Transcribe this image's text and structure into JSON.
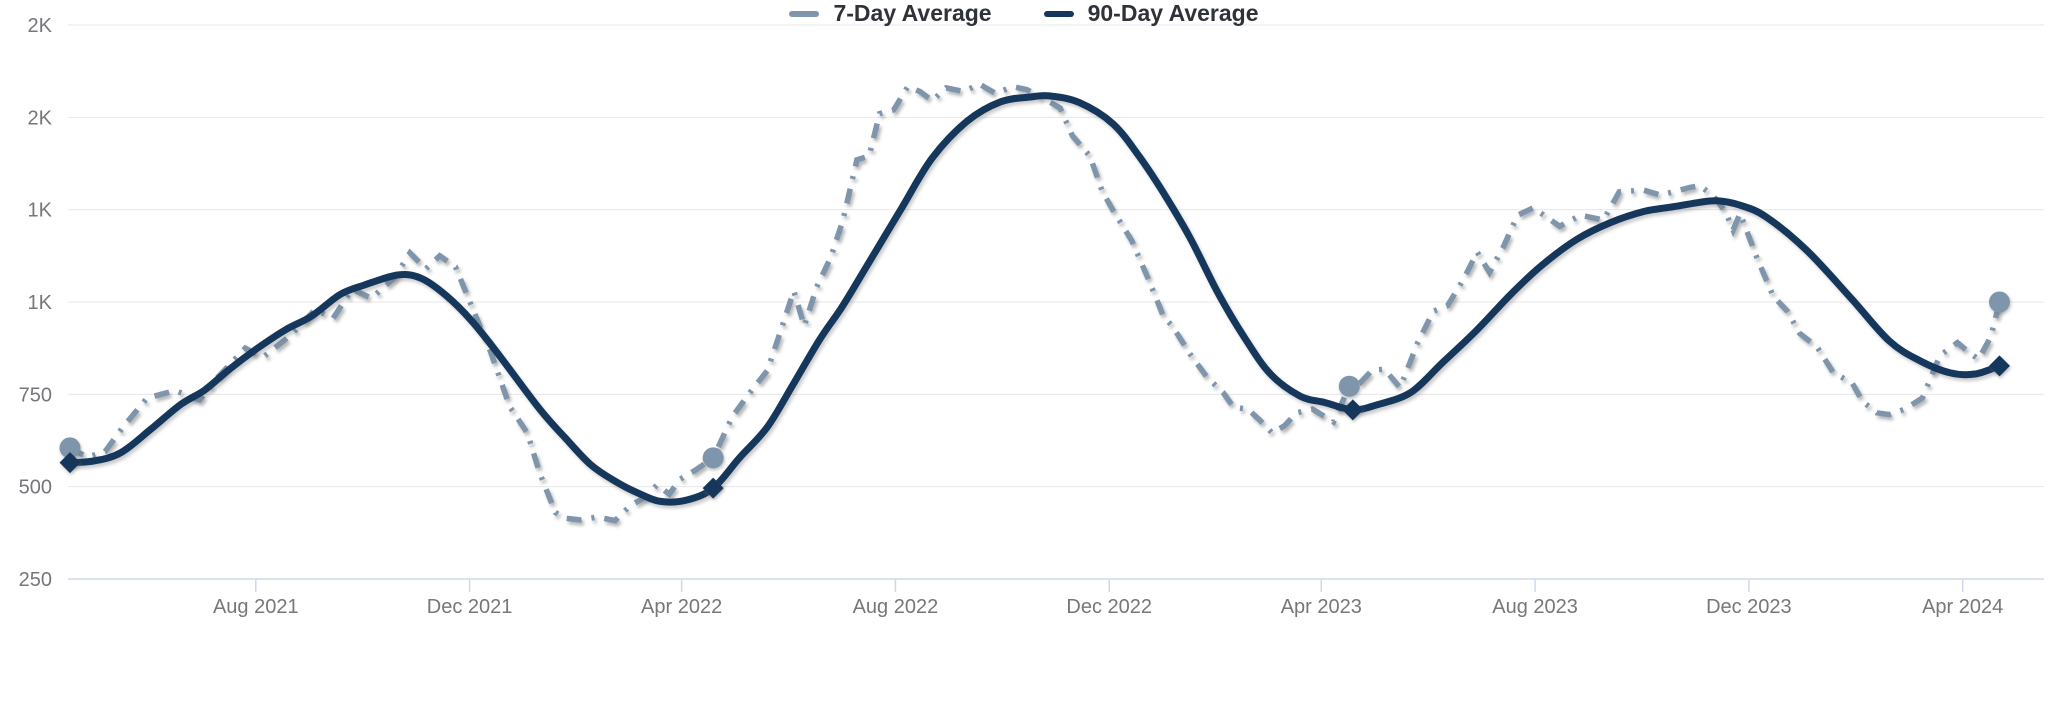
{
  "chart_data": {
    "type": "line",
    "title": "",
    "legend_position": "bottom-center",
    "grid": true,
    "x_axis": {
      "domain": [
        "2021-04-17",
        "2024-04-28"
      ],
      "ticks": [
        {
          "label": "Aug 2021",
          "date": "2021-08-01"
        },
        {
          "label": "Dec 2021",
          "date": "2021-12-01"
        },
        {
          "label": "Apr 2022",
          "date": "2022-04-01"
        },
        {
          "label": "Aug 2022",
          "date": "2022-08-01"
        },
        {
          "label": "Dec 2022",
          "date": "2022-12-01"
        },
        {
          "label": "Apr 2023",
          "date": "2023-04-01"
        },
        {
          "label": "Aug 2023",
          "date": "2023-08-01"
        },
        {
          "label": "Dec 2023",
          "date": "2023-12-01"
        },
        {
          "label": "Apr 2024",
          "date": "2024-04-01"
        }
      ]
    },
    "y_axis": {
      "range": [
        250,
        1750
      ],
      "ticks": [
        {
          "label": "2K",
          "value": 1750
        },
        {
          "label": "2K",
          "value": 1500
        },
        {
          "label": "1K",
          "value": 1250
        },
        {
          "label": "1K",
          "value": 1000
        },
        {
          "label": "750",
          "value": 750
        },
        {
          "label": "500",
          "value": 500
        },
        {
          "label": "250",
          "value": 250
        }
      ]
    },
    "series": [
      {
        "name": "7-Day Average",
        "color": "#7e95ab",
        "style": "dashed",
        "marker": "circle",
        "points": [
          [
            "2021-04-17",
            605
          ],
          [
            "2021-04-27",
            580
          ],
          [
            "2021-05-07",
            595
          ],
          [
            "2021-05-17",
            660
          ],
          [
            "2021-05-31",
            740
          ],
          [
            "2021-06-16",
            760
          ],
          [
            "2021-06-30",
            735
          ],
          [
            "2021-07-09",
            790
          ],
          [
            "2021-07-26",
            875
          ],
          [
            "2021-08-05",
            850
          ],
          [
            "2021-08-21",
            910
          ],
          [
            "2021-09-04",
            980
          ],
          [
            "2021-09-14",
            955
          ],
          [
            "2021-09-25",
            1035
          ],
          [
            "2021-10-06",
            1010
          ],
          [
            "2021-10-19",
            1065
          ],
          [
            "2021-10-28",
            1133
          ],
          [
            "2021-11-06",
            1090
          ],
          [
            "2021-11-14",
            1125
          ],
          [
            "2021-11-23",
            1095
          ],
          [
            "2021-11-30",
            1014
          ],
          [
            "2021-12-13",
            865
          ],
          [
            "2021-12-24",
            716
          ],
          [
            "2022-01-03",
            645
          ],
          [
            "2022-01-10",
            537
          ],
          [
            "2022-01-19",
            430
          ],
          [
            "2022-01-24",
            415
          ],
          [
            "2022-02-02",
            410
          ],
          [
            "2022-02-12",
            418
          ],
          [
            "2022-02-22",
            408
          ],
          [
            "2022-03-03",
            450
          ],
          [
            "2022-03-11",
            470
          ],
          [
            "2022-03-18",
            505
          ],
          [
            "2022-03-25",
            480
          ],
          [
            "2022-03-31",
            520
          ],
          [
            "2022-04-09",
            545
          ],
          [
            "2022-04-19",
            578
          ],
          [
            "2022-04-30",
            690
          ],
          [
            "2022-05-10",
            755
          ],
          [
            "2022-05-20",
            815
          ],
          [
            "2022-05-27",
            915
          ],
          [
            "2022-06-04",
            1030
          ],
          [
            "2022-06-10",
            935
          ],
          [
            "2022-06-17",
            1040
          ],
          [
            "2022-06-25",
            1120
          ],
          [
            "2022-07-02",
            1220
          ],
          [
            "2022-07-10",
            1385
          ],
          [
            "2022-07-17",
            1395
          ],
          [
            "2022-07-23",
            1510
          ],
          [
            "2022-07-31",
            1520
          ],
          [
            "2022-08-08",
            1583
          ],
          [
            "2022-08-15",
            1570
          ],
          [
            "2022-08-22",
            1545
          ],
          [
            "2022-08-30",
            1580
          ],
          [
            "2022-09-09",
            1570
          ],
          [
            "2022-09-18",
            1590
          ],
          [
            "2022-09-27",
            1565
          ],
          [
            "2022-10-07",
            1583
          ],
          [
            "2022-10-15",
            1575
          ],
          [
            "2022-10-25",
            1550
          ],
          [
            "2022-11-03",
            1525
          ],
          [
            "2022-11-10",
            1450
          ],
          [
            "2022-11-20",
            1395
          ],
          [
            "2022-11-27",
            1300
          ],
          [
            "2022-12-03",
            1250
          ],
          [
            "2022-12-14",
            1165
          ],
          [
            "2022-12-24",
            1055
          ],
          [
            "2023-01-01",
            960
          ],
          [
            "2023-01-06",
            935
          ],
          [
            "2023-01-16",
            860
          ],
          [
            "2023-01-26",
            795
          ],
          [
            "2023-02-04",
            755
          ],
          [
            "2023-02-10",
            715
          ],
          [
            "2023-02-18",
            710
          ],
          [
            "2023-02-25",
            680
          ],
          [
            "2023-03-04",
            645
          ],
          [
            "2023-03-11",
            665
          ],
          [
            "2023-03-18",
            700
          ],
          [
            "2023-03-27",
            710
          ],
          [
            "2023-04-08",
            675
          ],
          [
            "2023-04-17",
            772
          ],
          [
            "2023-04-23",
            780
          ],
          [
            "2023-04-30",
            815
          ],
          [
            "2023-05-07",
            818
          ],
          [
            "2023-05-16",
            768
          ],
          [
            "2023-05-26",
            890
          ],
          [
            "2023-06-04",
            975
          ],
          [
            "2023-06-12",
            990
          ],
          [
            "2023-06-21",
            1060
          ],
          [
            "2023-06-29",
            1135
          ],
          [
            "2023-07-06",
            1080
          ],
          [
            "2023-07-14",
            1150
          ],
          [
            "2023-07-22",
            1235
          ],
          [
            "2023-07-31",
            1255
          ],
          [
            "2023-08-15",
            1205
          ],
          [
            "2023-08-27",
            1235
          ],
          [
            "2023-09-09",
            1222
          ],
          [
            "2023-09-18",
            1298
          ],
          [
            "2023-10-02",
            1303
          ],
          [
            "2023-10-11",
            1290
          ],
          [
            "2023-10-19",
            1298
          ],
          [
            "2023-10-28",
            1310
          ],
          [
            "2023-11-03",
            1315
          ],
          [
            "2023-11-10",
            1290
          ],
          [
            "2023-11-14",
            1268
          ],
          [
            "2023-11-18",
            1240
          ],
          [
            "2023-11-22",
            1195
          ],
          [
            "2023-11-26",
            1240
          ],
          [
            "2023-12-06",
            1115
          ],
          [
            "2023-12-15",
            1015
          ],
          [
            "2023-12-23",
            975
          ],
          [
            "2023-12-30",
            915
          ],
          [
            "2024-01-09",
            878
          ],
          [
            "2024-01-18",
            810
          ],
          [
            "2024-01-29",
            780
          ],
          [
            "2024-02-04",
            730
          ],
          [
            "2024-02-12",
            700
          ],
          [
            "2024-02-19",
            695
          ],
          [
            "2024-02-28",
            710
          ],
          [
            "2024-03-09",
            740
          ],
          [
            "2024-03-19",
            855
          ],
          [
            "2024-03-29",
            890
          ],
          [
            "2024-04-05",
            862
          ],
          [
            "2024-04-10",
            845
          ],
          [
            "2024-04-17",
            905
          ],
          [
            "2024-04-22",
            1000
          ]
        ],
        "marker_points": [
          [
            "2021-04-17",
            605
          ],
          [
            "2022-04-19",
            578
          ],
          [
            "2023-04-17",
            772
          ],
          [
            "2024-04-22",
            1000
          ]
        ]
      },
      {
        "name": "90-Day Average",
        "color": "#16375c",
        "style": "solid",
        "marker": "diamond",
        "points": [
          [
            "2021-04-17",
            565
          ],
          [
            "2021-05-01",
            570
          ],
          [
            "2021-05-16",
            592
          ],
          [
            "2021-06-02",
            655
          ],
          [
            "2021-06-19",
            722
          ],
          [
            "2021-07-03",
            762
          ],
          [
            "2021-07-17",
            818
          ],
          [
            "2021-08-02",
            875
          ],
          [
            "2021-08-18",
            925
          ],
          [
            "2021-09-02",
            962
          ],
          [
            "2021-09-18",
            1020
          ],
          [
            "2021-10-02",
            1046
          ],
          [
            "2021-10-21",
            1073
          ],
          [
            "2021-11-03",
            1065
          ],
          [
            "2021-11-17",
            1020
          ],
          [
            "2021-12-02",
            950
          ],
          [
            "2021-12-18",
            855
          ],
          [
            "2022-01-10",
            710
          ],
          [
            "2022-01-24",
            635
          ],
          [
            "2022-02-08",
            560
          ],
          [
            "2022-02-22",
            515
          ],
          [
            "2022-03-07",
            483
          ],
          [
            "2022-03-20",
            460
          ],
          [
            "2022-04-04",
            464
          ],
          [
            "2022-04-19",
            496
          ],
          [
            "2022-05-04",
            578
          ],
          [
            "2022-05-20",
            662
          ],
          [
            "2022-06-04",
            780
          ],
          [
            "2022-06-19",
            900
          ],
          [
            "2022-07-02",
            990
          ],
          [
            "2022-07-16",
            1100
          ],
          [
            "2022-08-04",
            1250
          ],
          [
            "2022-08-22",
            1390
          ],
          [
            "2022-09-11",
            1490
          ],
          [
            "2022-09-30",
            1542
          ],
          [
            "2022-10-17",
            1555
          ],
          [
            "2022-10-28",
            1558
          ],
          [
            "2022-11-14",
            1540
          ],
          [
            "2022-12-03",
            1483
          ],
          [
            "2022-12-18",
            1395
          ],
          [
            "2023-01-01",
            1295
          ],
          [
            "2023-01-16",
            1175
          ],
          [
            "2023-02-01",
            1025
          ],
          [
            "2023-02-16",
            905
          ],
          [
            "2023-03-03",
            805
          ],
          [
            "2023-03-20",
            745
          ],
          [
            "2023-04-03",
            728
          ],
          [
            "2023-04-19",
            708
          ],
          [
            "2023-05-03",
            722
          ],
          [
            "2023-05-22",
            755
          ],
          [
            "2023-06-09",
            835
          ],
          [
            "2023-06-29",
            925
          ],
          [
            "2023-07-18",
            1020
          ],
          [
            "2023-08-05",
            1100
          ],
          [
            "2023-08-25",
            1170
          ],
          [
            "2023-09-13",
            1215
          ],
          [
            "2023-10-02",
            1245
          ],
          [
            "2023-10-19",
            1258
          ],
          [
            "2023-11-03",
            1270
          ],
          [
            "2023-11-13",
            1274
          ],
          [
            "2023-11-26",
            1262
          ],
          [
            "2023-12-11",
            1230
          ],
          [
            "2024-01-03",
            1140
          ],
          [
            "2024-01-28",
            1012
          ],
          [
            "2024-02-19",
            895
          ],
          [
            "2024-03-08",
            840
          ],
          [
            "2024-03-25",
            808
          ],
          [
            "2024-04-08",
            805
          ],
          [
            "2024-04-22",
            827
          ]
        ],
        "marker_points": [
          [
            "2021-04-17",
            565
          ],
          [
            "2022-04-19",
            496
          ],
          [
            "2023-04-19",
            708
          ],
          [
            "2024-04-22",
            827
          ]
        ]
      }
    ]
  },
  "colors": {
    "grid": "#e7e7e7",
    "axis": "#cdd9ea",
    "axis_text": "#75777b",
    "legend_text": "#2f3237",
    "background": "#ffffff"
  }
}
